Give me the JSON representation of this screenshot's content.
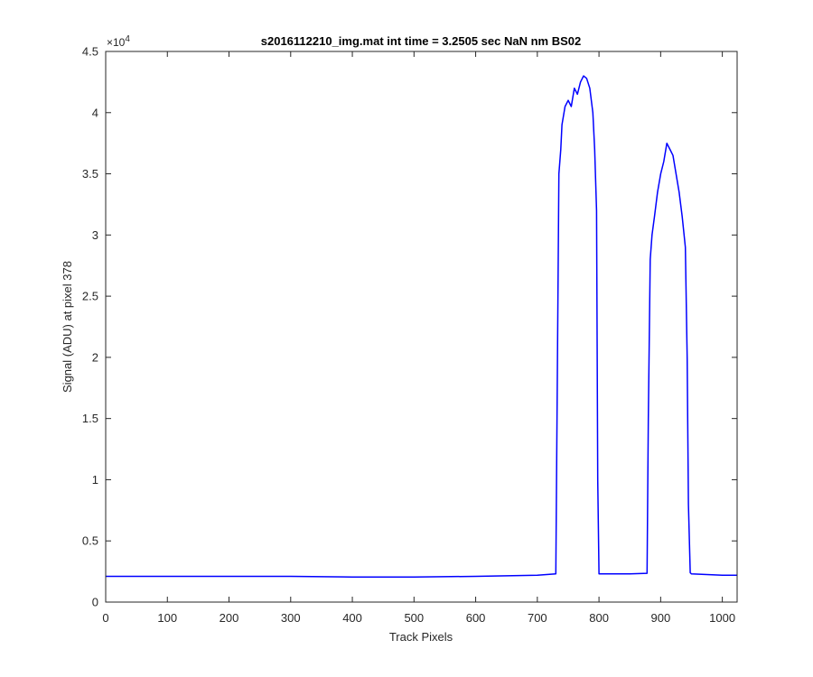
{
  "chart_data": {
    "type": "line",
    "title": "s2016112210_img.mat int time = 3.2505 sec  NaN nm BS02",
    "xlabel": "Track Pixels",
    "ylabel": "Signal (ADU) at pixel 378",
    "xlim": [
      0,
      1024
    ],
    "ylim": [
      0,
      45000
    ],
    "x_ticks": [
      0,
      100,
      200,
      300,
      400,
      500,
      600,
      700,
      800,
      900,
      1000
    ],
    "x_tick_labels": [
      "0",
      "100",
      "200",
      "300",
      "400",
      "500",
      "600",
      "700",
      "800",
      "900",
      "1000"
    ],
    "y_ticks": [
      0,
      5000,
      10000,
      15000,
      20000,
      25000,
      30000,
      35000,
      40000,
      45000
    ],
    "y_tick_labels": [
      "0",
      "0.5",
      "1",
      "1.5",
      "2",
      "2.5",
      "3",
      "3.5",
      "4",
      "4.5"
    ],
    "y_exponent_label": "×10",
    "y_exponent_power": "4",
    "grid": false,
    "series_color": "#0000ff",
    "series": [
      {
        "x": [
          0,
          100,
          200,
          300,
          400,
          500,
          600,
          700,
          730,
          735,
          738,
          740,
          745,
          750,
          755,
          760,
          765,
          770,
          775,
          780,
          785,
          790,
          793,
          796,
          798,
          800,
          820,
          850,
          878,
          880,
          883,
          886,
          890,
          895,
          900,
          905,
          910,
          915,
          920,
          925,
          930,
          935,
          940,
          943,
          945,
          948,
          950,
          1000,
          1024
        ],
        "y": [
          2100,
          2100,
          2100,
          2100,
          2050,
          2050,
          2100,
          2200,
          2300,
          35000,
          37000,
          39000,
          40500,
          41000,
          40500,
          42000,
          41500,
          42500,
          43000,
          42800,
          42000,
          40000,
          37000,
          32000,
          10000,
          2300,
          2300,
          2300,
          2350,
          15000,
          28000,
          30000,
          31500,
          33500,
          35000,
          36000,
          37500,
          37000,
          36500,
          35000,
          33500,
          31500,
          29000,
          20000,
          8000,
          2400,
          2300,
          2200,
          2200
        ]
      }
    ]
  }
}
